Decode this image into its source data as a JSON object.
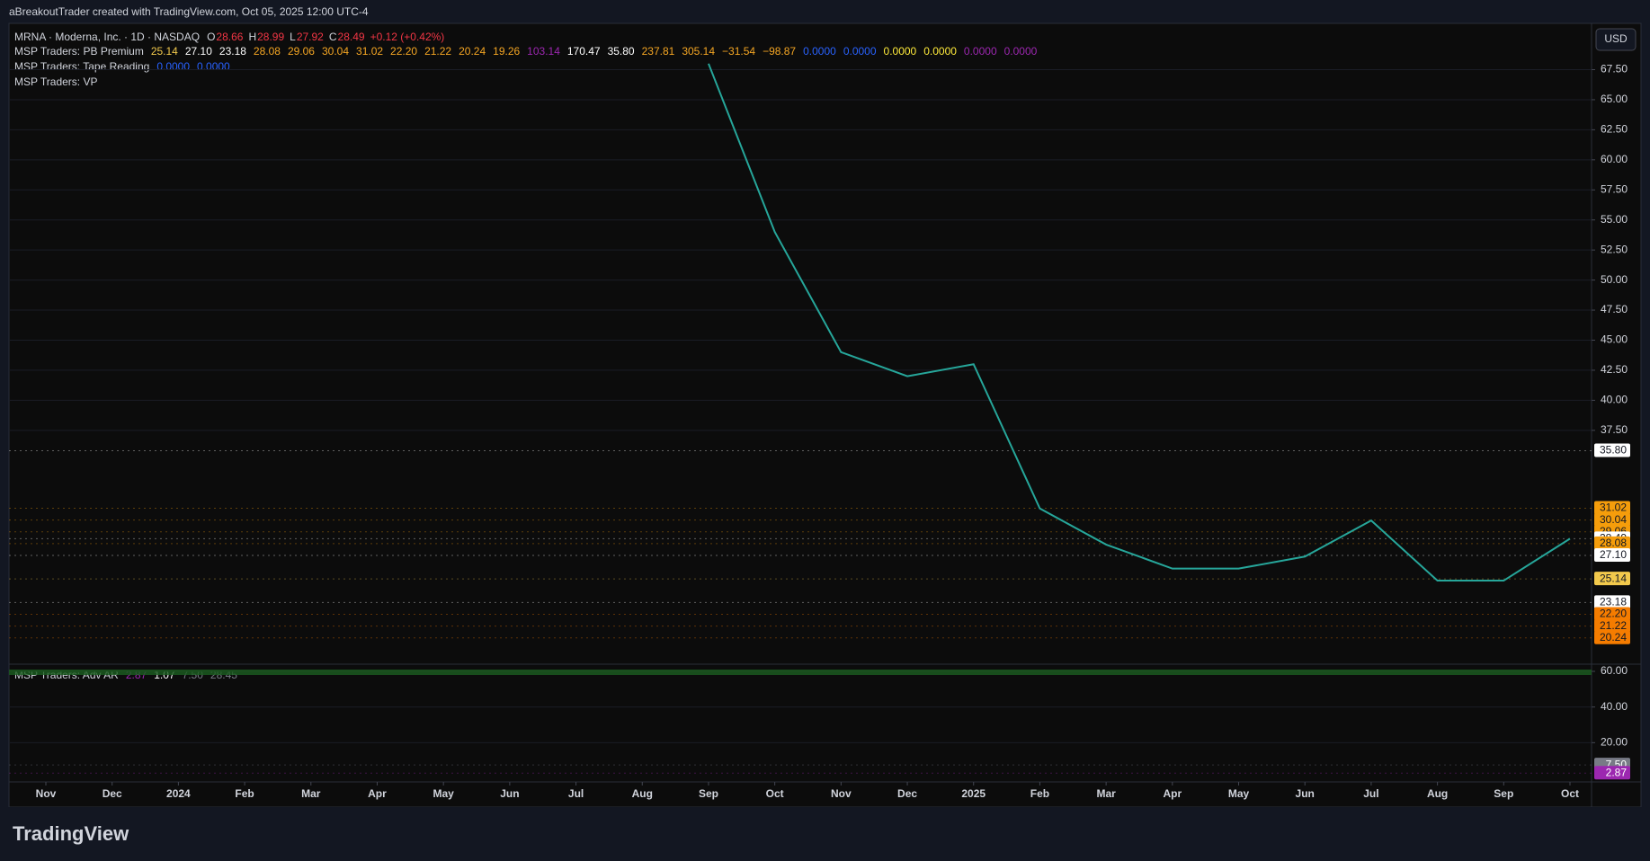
{
  "header": {
    "credit": "aBreakoutTrader created with TradingView.com, Oct 05, 2025 12:00 UTC-4",
    "currency": "USD",
    "logo": "TradingView"
  },
  "legend": {
    "symbol": "MRNA · Moderna, Inc. · 1D · NASDAQ",
    "ohlc": [
      {
        "label": "O",
        "value": "28.66"
      },
      {
        "label": "H",
        "value": "28.99"
      },
      {
        "label": "L",
        "value": "27.92"
      },
      {
        "label": "C",
        "value": "28.49"
      }
    ],
    "change": "+0.12 (+0.42%)",
    "indicators": [
      {
        "name": "MSP Traders: PB Premium",
        "values": [
          {
            "text": "25.14",
            "color": "#f2c94c"
          },
          {
            "text": "27.10",
            "color": "#ffffff"
          },
          {
            "text": "23.18",
            "color": "#ffffff"
          },
          {
            "text": "28.08",
            "color": "#f5a623"
          },
          {
            "text": "29.06",
            "color": "#f5a623"
          },
          {
            "text": "30.04",
            "color": "#f5a623"
          },
          {
            "text": "31.02",
            "color": "#f5a623"
          },
          {
            "text": "22.20",
            "color": "#f5a623"
          },
          {
            "text": "21.22",
            "color": "#f5a623"
          },
          {
            "text": "20.24",
            "color": "#f5a623"
          },
          {
            "text": "19.26",
            "color": "#f5a623"
          },
          {
            "text": "103.14",
            "color": "#9c27b0"
          },
          {
            "text": "170.47",
            "color": "#ffffff"
          },
          {
            "text": "35.80",
            "color": "#ffffff"
          },
          {
            "text": "237.81",
            "color": "#f5a623"
          },
          {
            "text": "305.14",
            "color": "#f5a623"
          },
          {
            "text": "−31.54",
            "color": "#f5a623"
          },
          {
            "text": "−98.87",
            "color": "#f5a623"
          },
          {
            "text": "0.0000",
            "color": "#2962ff"
          },
          {
            "text": "0.0000",
            "color": "#2962ff"
          },
          {
            "text": "0.0000",
            "color": "#ffeb3b"
          },
          {
            "text": "0.0000",
            "color": "#ffeb3b"
          },
          {
            "text": "0.0000",
            "color": "#9c27b0"
          },
          {
            "text": "0.0000",
            "color": "#9c27b0"
          }
        ]
      },
      {
        "name": "MSP Traders: Tape Reading",
        "values": [
          {
            "text": "0.0000",
            "color": "#2962ff"
          },
          {
            "text": "0.0000",
            "color": "#2962ff"
          }
        ]
      },
      {
        "name": "MSP Traders: VP",
        "values": []
      }
    ],
    "lower_indicator": {
      "name": "MSP Traders: Adv AR",
      "values": [
        {
          "text": "2.87",
          "color": "#9c27b0"
        },
        {
          "text": "1.07",
          "color": "#ffffff"
        },
        {
          "text": "7.50",
          "color": "#787b86"
        },
        {
          "text": "28.45",
          "color": "#787b86"
        }
      ]
    }
  },
  "chart_data": [
    {
      "type": "line",
      "categories": [
        "Nov",
        "Dec",
        "2024",
        "Feb",
        "Mar",
        "Apr",
        "May",
        "Jun",
        "Jul",
        "Aug",
        "Sep",
        "Oct",
        "Nov",
        "Dec",
        "2025",
        "Feb",
        "Mar",
        "Apr",
        "May",
        "Jun",
        "Jul",
        "Aug",
        "Sep",
        "Oct"
      ],
      "series": [
        {
          "name": "MRNA",
          "color": "#26a69a",
          "values": [
            null,
            null,
            null,
            null,
            null,
            null,
            null,
            null,
            null,
            null,
            68,
            54,
            44,
            42,
            43,
            31,
            28,
            26,
            26,
            27,
            30,
            25,
            25,
            28.49
          ]
        }
      ],
      "ylim": [
        18.2,
        71.2
      ],
      "yticks": [
        {
          "value": 37.5,
          "label": "37.50"
        },
        {
          "value": 40,
          "label": "40.00"
        },
        {
          "value": 42.5,
          "label": "42.50"
        },
        {
          "value": 45,
          "label": "45.00"
        },
        {
          "value": 47.5,
          "label": "47.50"
        },
        {
          "value": 50,
          "label": "50.00"
        },
        {
          "value": 52.5,
          "label": "52.50"
        },
        {
          "value": 55,
          "label": "55.00"
        },
        {
          "value": 57.5,
          "label": "57.50"
        },
        {
          "value": 60,
          "label": "60.00"
        },
        {
          "value": 62.5,
          "label": "62.50"
        },
        {
          "value": 65,
          "label": "65.00"
        },
        {
          "value": 67.5,
          "label": "67.50"
        }
      ],
      "price_markers": [
        {
          "value": 35.8,
          "label": "35.80",
          "color": "#ffffff",
          "text_color": "#131722"
        },
        {
          "value": 31.02,
          "label": "31.02",
          "color": "#f59d0b",
          "text_color": "#131722"
        },
        {
          "value": 30.04,
          "label": "30.04",
          "color": "#f59d0b",
          "text_color": "#131722"
        },
        {
          "value": 29.06,
          "label": "29.06",
          "color": "#f59d0b",
          "text_color": "#131722"
        },
        {
          "value": 28.49,
          "label": "28.49",
          "color": "#ffffff",
          "text_color": "#131722"
        },
        {
          "value": 28.08,
          "label": "28.08",
          "color": "#f59d0b",
          "text_color": "#131722"
        },
        {
          "value": 27.1,
          "label": "27.10",
          "color": "#ffffff",
          "text_color": "#131722"
        },
        {
          "value": 25.14,
          "label": "25.14",
          "color": "#f2c94c",
          "text_color": "#131722"
        },
        {
          "value": 23.18,
          "label": "23.18",
          "color": "#ffffff",
          "text_color": "#131722"
        },
        {
          "value": 22.2,
          "label": "22.20",
          "color": "#f57c00",
          "text_color": "#131722"
        },
        {
          "value": 21.22,
          "label": "21.22",
          "color": "#f57c00",
          "text_color": "#131722"
        },
        {
          "value": 20.24,
          "label": "20.24",
          "color": "#f57c00",
          "text_color": "#131722"
        }
      ]
    },
    {
      "type": "indicator",
      "ylim": [
        0,
        61
      ],
      "yticks": [
        {
          "value": 20,
          "label": "20.00"
        },
        {
          "value": 40,
          "label": "40.00"
        },
        {
          "value": 60,
          "label": "60.00"
        }
      ],
      "price_markers": [
        {
          "value": 7.5,
          "label": "7.50",
          "color": "#787b86",
          "text_color": "#ffffff"
        },
        {
          "value": 2.87,
          "label": "2.87",
          "color": "#9c27b0",
          "text_color": "#ffffff"
        }
      ]
    }
  ]
}
